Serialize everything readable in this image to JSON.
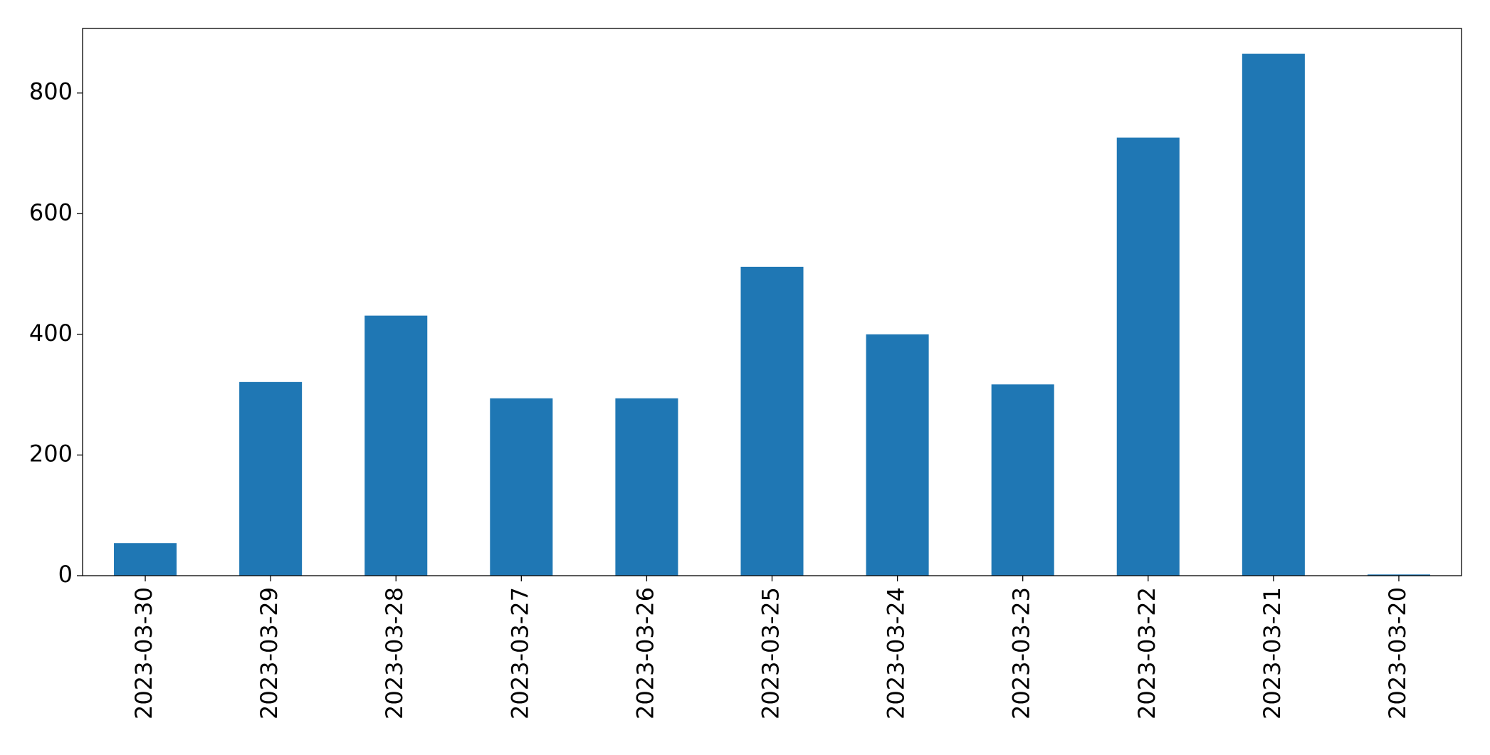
{
  "chart_data": {
    "type": "bar",
    "categories": [
      "2023-03-30",
      "2023-03-29",
      "2023-03-28",
      "2023-03-27",
      "2023-03-26",
      "2023-03-25",
      "2023-03-24",
      "2023-03-23",
      "2023-03-22",
      "2023-03-21",
      "2023-03-20"
    ],
    "values": [
      54,
      321,
      431,
      294,
      294,
      512,
      400,
      317,
      726,
      865,
      2
    ],
    "color": "#1f77b4",
    "ylim": [
      0,
      907
    ],
    "yticks": [
      0,
      200,
      400,
      600,
      800
    ],
    "grid": false
  }
}
